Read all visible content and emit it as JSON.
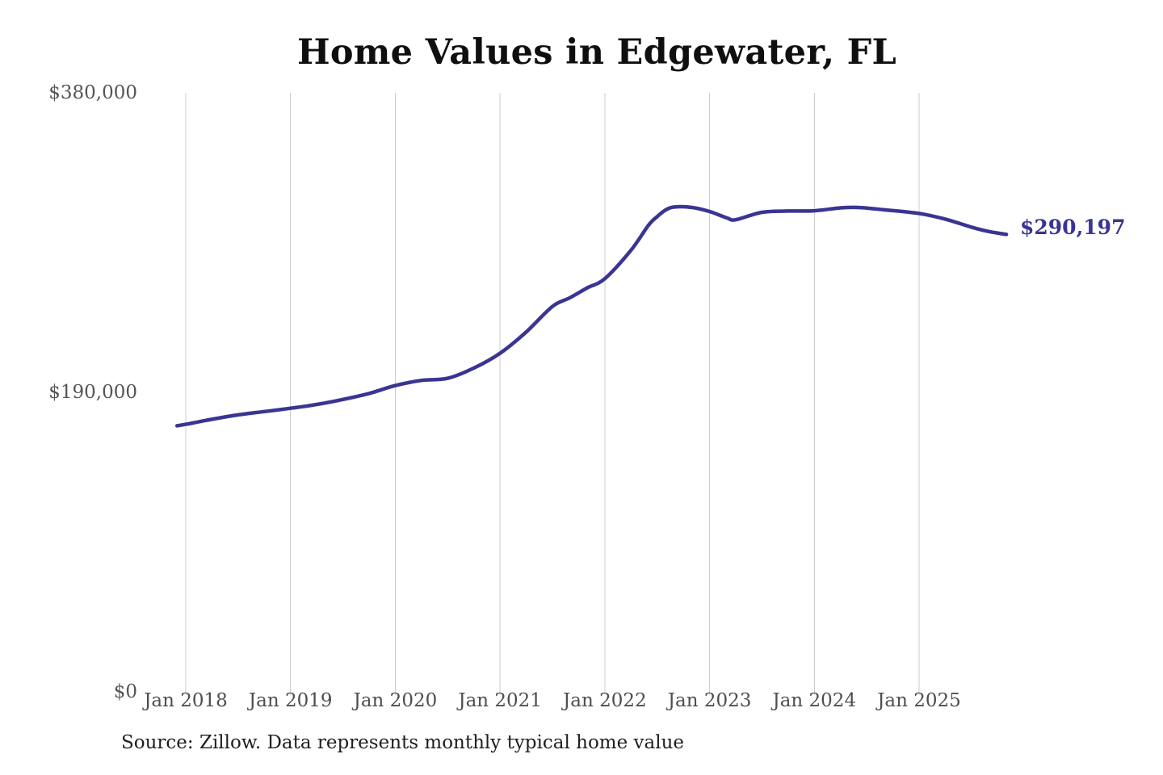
{
  "chart": {
    "title": "Home Values in Edgewater, FL"
  },
  "y_axis": {
    "ticks": [
      {
        "label": "$380,000",
        "value": 380000
      },
      {
        "label": "$190,000",
        "value": 190000
      },
      {
        "label": "$0",
        "value": 0
      }
    ]
  },
  "x_axis": {
    "ticks": [
      "Jan 2018",
      "Jan 2019",
      "Jan 2020",
      "Jan 2021",
      "Jan 2022",
      "Jan 2023",
      "Jan 2024",
      "Jan 2025"
    ]
  },
  "annotation": {
    "label": "$290,197",
    "value": 290197
  },
  "source": "Source: Zillow. Data represents monthly typical home value",
  "colors": {
    "line": "#3a3493",
    "annotation_text": "#3a3493",
    "grid": "#cccccc",
    "y_axis_text": "#555555",
    "x_axis_text": "#4e4e4e",
    "title_text": "#0f0f0f",
    "source_text": "#1f1f1f",
    "background": "#ffffff"
  },
  "chart_data": {
    "type": "line",
    "title": "Home Values in Edgewater, FL",
    "xlabel": "",
    "ylabel": "",
    "ylim": [
      0,
      380000
    ],
    "y_tick_values": [
      0,
      190000,
      380000
    ],
    "x_gridline_labels": [
      "Jan 2018",
      "Jan 2019",
      "Jan 2020",
      "Jan 2021",
      "Jan 2022",
      "Jan 2023",
      "Jan 2024",
      "Jan 2025"
    ],
    "grid": "vertical-only",
    "legend": "none",
    "final_value_label": "$290,197",
    "series": [
      {
        "name": "Monthly typical home value",
        "points": [
          {
            "date": "Dec 2017",
            "value": 168800
          },
          {
            "date": "Jan 2018",
            "value": 169700
          },
          {
            "date": "Apr 2018",
            "value": 172900
          },
          {
            "date": "Jul 2018",
            "value": 175700
          },
          {
            "date": "Oct 2018",
            "value": 177800
          },
          {
            "date": "Jan 2019",
            "value": 179900
          },
          {
            "date": "Apr 2019",
            "value": 182300
          },
          {
            "date": "Jul 2019",
            "value": 185500
          },
          {
            "date": "Oct 2019",
            "value": 189300
          },
          {
            "date": "Jan 2020",
            "value": 194300
          },
          {
            "date": "Apr 2020",
            "value": 197600
          },
          {
            "date": "Jul 2020",
            "value": 198900
          },
          {
            "date": "Oct 2020",
            "value": 205400
          },
          {
            "date": "Jan 2021",
            "value": 214800
          },
          {
            "date": "Apr 2021",
            "value": 228300
          },
          {
            "date": "Jul 2021",
            "value": 244500
          },
          {
            "date": "Sep 2021",
            "value": 250000
          },
          {
            "date": "Nov 2021",
            "value": 256300
          },
          {
            "date": "Jan 2022",
            "value": 262100
          },
          {
            "date": "Apr 2022",
            "value": 280200
          },
          {
            "date": "Jun 2022",
            "value": 296000
          },
          {
            "date": "Jul 2022",
            "value": 301500
          },
          {
            "date": "Aug 2022",
            "value": 305800
          },
          {
            "date": "Sep 2022",
            "value": 307600
          },
          {
            "date": "Nov 2022",
            "value": 307300
          },
          {
            "date": "Jan 2023",
            "value": 304700
          },
          {
            "date": "Mar 2023",
            "value": 300600
          },
          {
            "date": "Apr 2023",
            "value": 299500
          },
          {
            "date": "Jul 2023",
            "value": 304200
          },
          {
            "date": "Oct 2023",
            "value": 305000
          },
          {
            "date": "Jan 2024",
            "value": 305200
          },
          {
            "date": "Apr 2024",
            "value": 307000
          },
          {
            "date": "Jun 2024",
            "value": 307300
          },
          {
            "date": "Sep 2024",
            "value": 305800
          },
          {
            "date": "Jan 2025",
            "value": 303500
          },
          {
            "date": "Apr 2025",
            "value": 299900
          },
          {
            "date": "Jul 2025",
            "value": 294800
          },
          {
            "date": "Sep 2025",
            "value": 292000
          },
          {
            "date": "Nov 2025",
            "value": 290197
          }
        ]
      }
    ]
  }
}
